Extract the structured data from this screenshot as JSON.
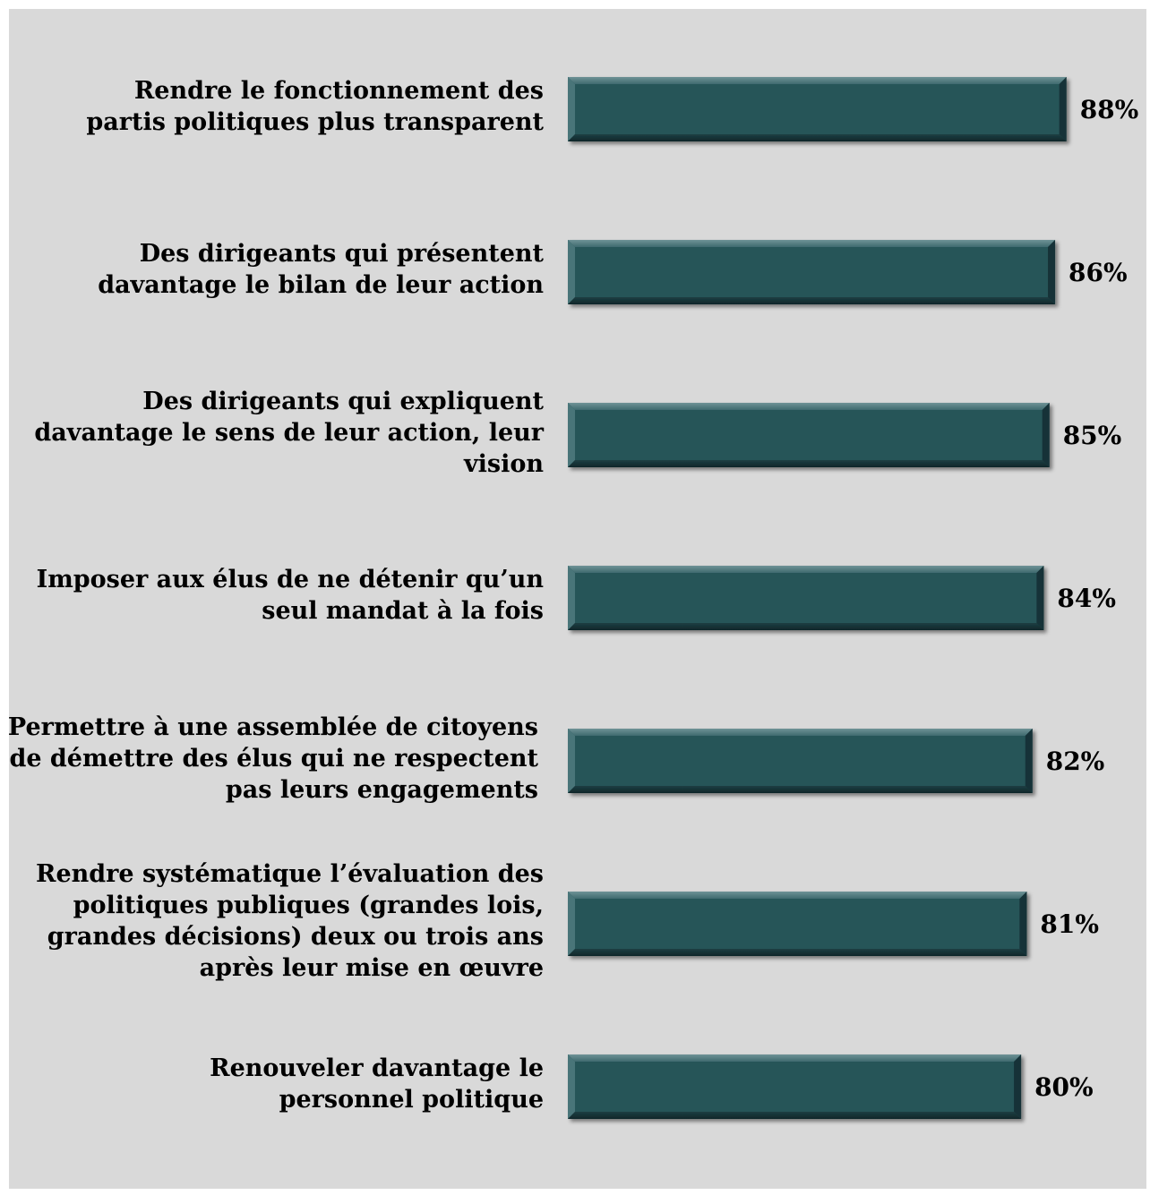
{
  "chart_data": {
    "type": "bar",
    "orientation": "horizontal",
    "categories": [
      "Rendre le fonctionnement des partis politiques plus transparent",
      "Des dirigeants qui présentent davantage le bilan de leur action",
      "Des dirigeants qui expliquent davantage le sens de leur action, leur vision",
      "Imposer aux élus de ne détenir qu’un seul mandat à la fois",
      "Permettre à une assemblée de citoyens de démettre des élus qui ne respectent pas leurs engagements",
      "Rendre systématique l’évaluation des politiques publiques (grandes lois, grandes décisions) deux ou trois ans après leur mise en œuvre",
      "Renouveler davantage le personnel politique"
    ],
    "values": [
      88,
      86,
      85,
      84,
      82,
      81,
      80
    ],
    "value_labels": [
      "88%",
      "86%",
      "85%",
      "84%",
      "82%",
      "81%",
      "80%"
    ],
    "unit": "%",
    "bar_color": "#285459",
    "background_color": "#d9d9d9",
    "grid": false,
    "legend": "none"
  }
}
